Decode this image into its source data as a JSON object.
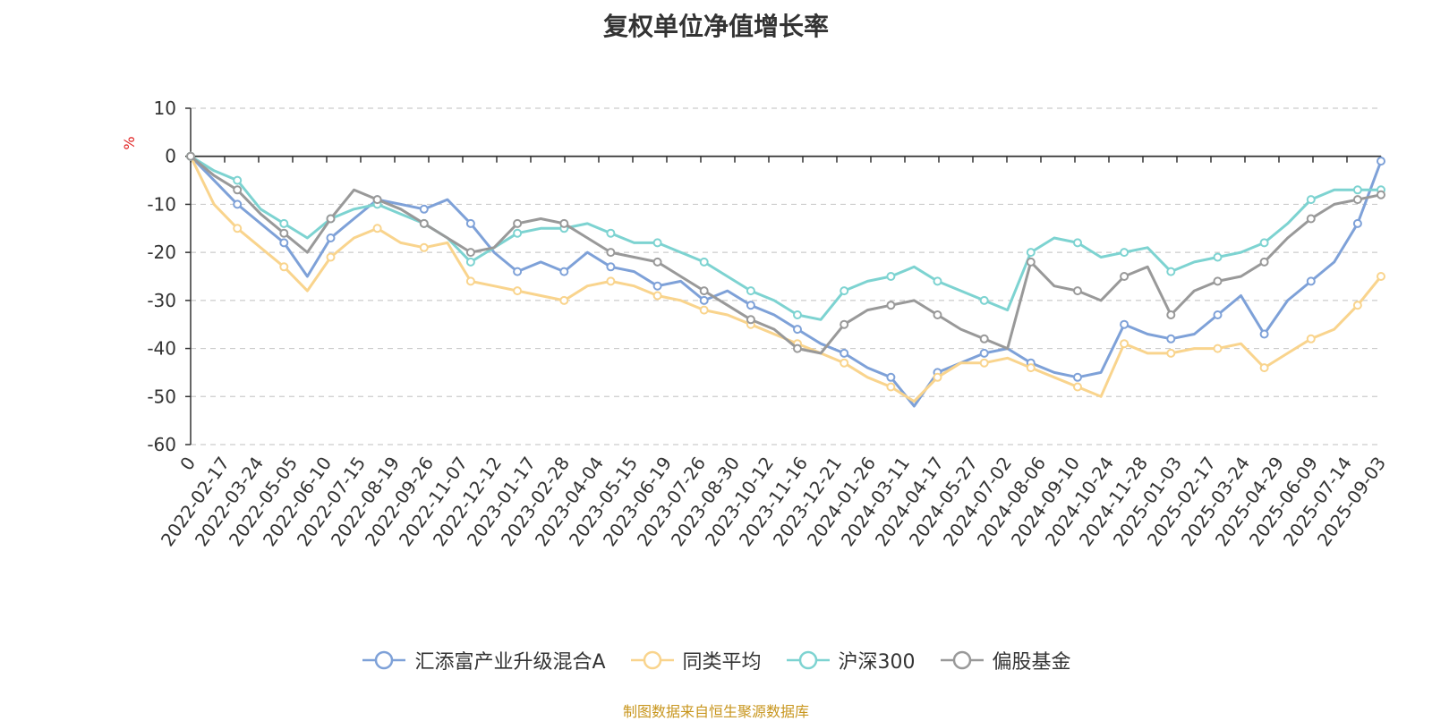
{
  "chart_data": {
    "type": "line",
    "title": "复权单位净值增长率",
    "ylabel": "%",
    "ylim": [
      -60,
      10
    ],
    "yticks": [
      10,
      0,
      -10,
      -20,
      -30,
      -40,
      -50,
      -60
    ],
    "x_ticklabels": [
      "0",
      "2022-02-17",
      "2022-03-24",
      "2022-05-05",
      "2022-06-10",
      "2022-07-15",
      "2022-08-19",
      "2022-09-26",
      "2022-11-07",
      "2022-12-12",
      "2023-01-17",
      "2023-02-28",
      "2023-04-04",
      "2023-05-15",
      "2023-06-19",
      "2023-07-26",
      "2023-08-30",
      "2023-10-12",
      "2023-11-16",
      "2023-12-21",
      "2024-01-26",
      "2024-03-11",
      "2024-04-17",
      "2024-05-27",
      "2024-07-02",
      "2024-08-06",
      "2024-09-10",
      "2024-10-24",
      "2024-11-28",
      "2025-01-03",
      "2025-02-17",
      "2025-03-24",
      "2025-04-29",
      "2025-06-09",
      "2025-07-14",
      "2025-09-03"
    ],
    "grid": true,
    "legend_position": "bottom",
    "series": [
      {
        "name": "汇添富产业升级混合A",
        "color": "#7ea1d8",
        "values": [
          0,
          -5,
          -10,
          -14,
          -18,
          -25,
          -17,
          -13,
          -9,
          -10,
          -11,
          -9,
          -14,
          -20,
          -24,
          -22,
          -24,
          -20,
          -23,
          -24,
          -27,
          -26,
          -30,
          -28,
          -31,
          -33,
          -36,
          -39,
          -41,
          -44,
          -46,
          -52,
          -45,
          -43,
          -41,
          -40,
          -43,
          -45,
          -46,
          -45,
          -35,
          -37,
          -38,
          -37,
          -33,
          -29,
          -37,
          -30,
          -26,
          -22,
          -14,
          -1
        ]
      },
      {
        "name": "同类平均",
        "color": "#f9d48d",
        "values": [
          0,
          -10,
          -15,
          -19,
          -23,
          -28,
          -21,
          -17,
          -15,
          -18,
          -19,
          -18,
          -26,
          -27,
          -28,
          -29,
          -30,
          -27,
          -26,
          -27,
          -29,
          -30,
          -32,
          -33,
          -35,
          -37,
          -39,
          -41,
          -43,
          -46,
          -48,
          -51,
          -46,
          -43,
          -43,
          -42,
          -44,
          -46,
          -48,
          -50,
          -39,
          -41,
          -41,
          -40,
          -40,
          -39,
          -44,
          -41,
          -38,
          -36,
          -31,
          -25
        ]
      },
      {
        "name": "沪深300",
        "color": "#7dd3d1",
        "values": [
          0,
          -3,
          -5,
          -11,
          -14,
          -17,
          -13,
          -11,
          -10,
          -12,
          -14,
          -17,
          -22,
          -19,
          -16,
          -15,
          -15,
          -14,
          -16,
          -18,
          -18,
          -20,
          -22,
          -25,
          -28,
          -30,
          -33,
          -34,
          -28,
          -26,
          -25,
          -23,
          -26,
          -28,
          -30,
          -32,
          -20,
          -17,
          -18,
          -21,
          -20,
          -19,
          -24,
          -22,
          -21,
          -20,
          -18,
          -14,
          -9,
          -7,
          -7,
          -7
        ]
      },
      {
        "name": "偏股基金",
        "color": "#999999",
        "values": [
          0,
          -4,
          -7,
          -12,
          -16,
          -20,
          -13,
          -7,
          -9,
          -11,
          -14,
          -17,
          -20,
          -19,
          -14,
          -13,
          -14,
          -17,
          -20,
          -21,
          -22,
          -25,
          -28,
          -31,
          -34,
          -36,
          -40,
          -41,
          -35,
          -32,
          -31,
          -30,
          -33,
          -36,
          -38,
          -40,
          -22,
          -27,
          -28,
          -30,
          -25,
          -23,
          -33,
          -28,
          -26,
          -25,
          -22,
          -17,
          -13,
          -10,
          -9,
          -8
        ]
      }
    ]
  },
  "source_note": "制图数据来自恒生聚源数据库"
}
